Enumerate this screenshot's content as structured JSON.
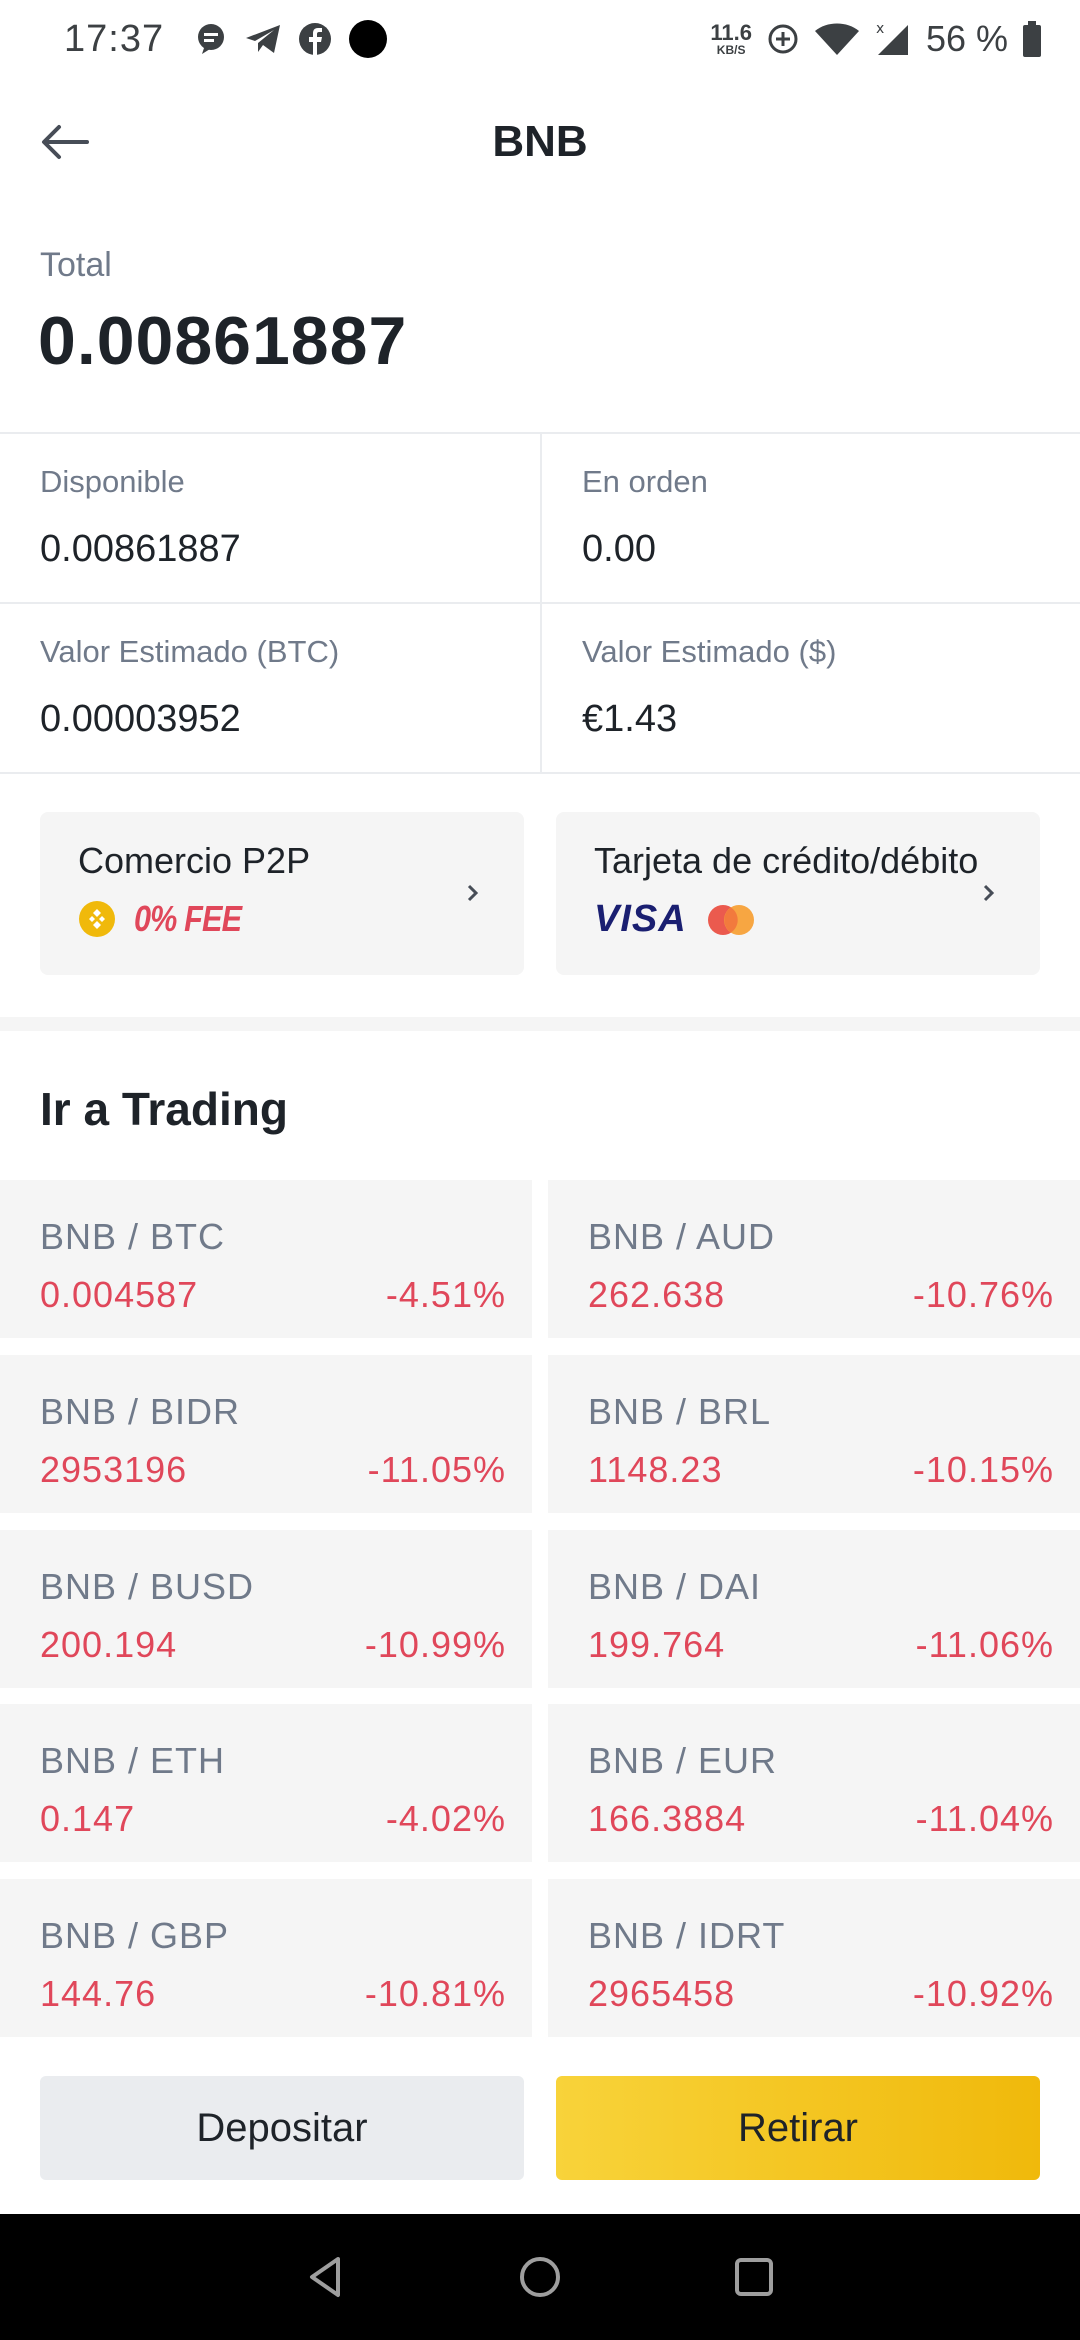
{
  "status_bar": {
    "time": "17:37",
    "net_speed": "11.6",
    "net_unit": "KB/S",
    "battery": "56 %"
  },
  "header": {
    "title": "BNB"
  },
  "total": {
    "label": "Total",
    "value": "0.00861887"
  },
  "balances": {
    "available_label": "Disponible",
    "available_value": "0.00861887",
    "in_order_label": "En orden",
    "in_order_value": "0.00",
    "est_btc_label": "Valor Estimado (BTC)",
    "est_btc_value": "0.00003952",
    "est_usd_label": "Valor Estimado ($)",
    "est_usd_value": "€1.43"
  },
  "promos": {
    "p2p_title": "Comercio P2P",
    "p2p_badge": "0% FEE",
    "card_title": "Tarjeta de crédito/débito",
    "card_brand": "VISA"
  },
  "trading": {
    "title": "Ir a Trading",
    "pairs": [
      {
        "name": "BNB / BTC",
        "price": "0.004587",
        "change": "-4.51%"
      },
      {
        "name": "BNB / AUD",
        "price": "262.638",
        "change": "-10.76%"
      },
      {
        "name": "BNB / BIDR",
        "price": "2953196",
        "change": "-11.05%"
      },
      {
        "name": "BNB / BRL",
        "price": "1148.23",
        "change": "-10.15%"
      },
      {
        "name": "BNB / BUSD",
        "price": "200.194",
        "change": "-10.99%"
      },
      {
        "name": "BNB / DAI",
        "price": "199.764",
        "change": "-11.06%"
      },
      {
        "name": "BNB / ETH",
        "price": "0.147",
        "change": "-4.02%"
      },
      {
        "name": "BNB / EUR",
        "price": "166.3884",
        "change": "-11.04%"
      },
      {
        "name": "BNB / GBP",
        "price": "144.76",
        "change": "-10.81%"
      },
      {
        "name": "BNB / IDRT",
        "price": "2965458",
        "change": "-10.92%"
      }
    ]
  },
  "actions": {
    "deposit_label": "Depositar",
    "withdraw_label": "Retirar"
  },
  "colors": {
    "negative": "#e0475a",
    "accent": "#f0b90b"
  }
}
